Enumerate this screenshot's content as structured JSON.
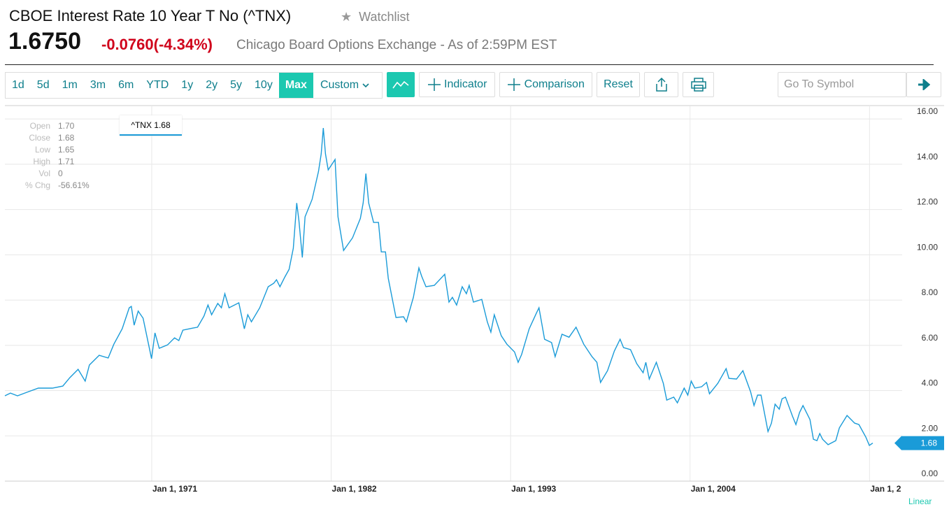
{
  "header": {
    "title": "CBOE Interest Rate 10 Year T No (^TNX)",
    "watchlist": "Watchlist",
    "price": "1.6750",
    "change": "-0.0760",
    "change_pct": "(-4.34%)",
    "source": "Chicago Board Options Exchange - As of 2:59PM EST"
  },
  "toolbar": {
    "ranges": [
      "1d",
      "5d",
      "1m",
      "3m",
      "6m",
      "YTD",
      "1y",
      "2y",
      "5y",
      "10y",
      "Max"
    ],
    "active_range": 10,
    "custom": "Custom",
    "indicator": "Indicator",
    "comparison": "Comparison",
    "reset": "Reset",
    "search_placeholder": "Go To Symbol"
  },
  "quote_panel": [
    {
      "label": "Open",
      "value": "1.70"
    },
    {
      "label": "Close",
      "value": "1.68"
    },
    {
      "label": "Low",
      "value": "1.65"
    },
    {
      "label": "High",
      "value": "1.71"
    },
    {
      "label": "Vol",
      "value": "0"
    },
    {
      "label": "% Chg",
      "value": "-56.61%"
    }
  ],
  "chart_data": {
    "type": "line",
    "legend_label": "^TNX 1.68",
    "last_label": "1.68",
    "scale_label": "Linear",
    "color": "#1a9bd8",
    "grid": true,
    "x": [
      1962.0,
      1962.34,
      1962.77,
      1963.33,
      1964.05,
      1964.91,
      1965.55,
      1965.98,
      1966.49,
      1966.92,
      1967.18,
      1967.78,
      1968.33,
      1968.68,
      1969.19,
      1969.62,
      1969.75,
      1969.92,
      1970.17,
      1970.47,
      1970.99,
      1971.2,
      1971.46,
      1971.97,
      1972.4,
      1972.66,
      1972.91,
      1973.51,
      1973.81,
      1974.2,
      1974.45,
      1974.67,
      1975.05,
      1975.27,
      1975.48,
      1975.74,
      1976.34,
      1976.68,
      1976.89,
      1977.11,
      1977.62,
      1978.14,
      1978.48,
      1978.65,
      1978.86,
      1979.16,
      1979.42,
      1979.68,
      1979.89,
      1980.02,
      1980.23,
      1980.4,
      1980.83,
      1981.22,
      1981.39,
      1981.52,
      1981.65,
      1981.82,
      1982.24,
      1982.42,
      1982.76,
      1983.31,
      1983.79,
      1983.96,
      1984.13,
      1984.3,
      1984.6,
      1984.9,
      1985.07,
      1985.33,
      1985.5,
      1985.97,
      1986.44,
      1986.61,
      1987.04,
      1987.38,
      1987.55,
      1987.81,
      1988.32,
      1988.96,
      1989.22,
      1989.43,
      1989.69,
      1990.03,
      1990.29,
      1990.46,
      1990.72,
      1991.23,
      1991.57,
      1991.79,
      1992.0,
      1992.43,
      1992.77,
      1993.24,
      1993.46,
      1993.67,
      1994.14,
      1994.57,
      1994.74,
      1995.08,
      1995.51,
      1995.73,
      1996.15,
      1996.58,
      1997.01,
      1997.48,
      1997.99,
      1998.29,
      1998.51,
      1998.94,
      1999.36,
      1999.71,
      1999.92,
      2000.35,
      2000.73,
      2001.12,
      2001.29,
      2001.5,
      2001.93,
      2002.36,
      2002.57,
      2003.0,
      2003.22,
      2003.64,
      2003.86,
      2004.07,
      2004.29,
      2004.71,
      2005.01,
      2005.19,
      2005.7,
      2006.21,
      2006.38,
      2006.85,
      2007.24,
      2007.71,
      2007.92,
      2008.14,
      2008.35,
      2008.78,
      2008.99,
      2009.21,
      2009.47,
      2009.64,
      2009.85,
      2010.28,
      2010.49,
      2010.71,
      2010.92,
      2011.35,
      2011.56,
      2011.78,
      2011.95,
      2012.12,
      2012.46,
      2012.93,
      2013.15,
      2013.62,
      2014.09,
      2014.35,
      2014.77,
      2014.99,
      2015.2
    ],
    "values": [
      3.77,
      3.89,
      3.77,
      3.92,
      4.11,
      4.11,
      4.2,
      4.57,
      4.94,
      4.42,
      5.13,
      5.56,
      5.44,
      6.05,
      6.73,
      7.66,
      7.72,
      6.89,
      7.51,
      7.2,
      5.41,
      6.55,
      5.87,
      6.02,
      6.33,
      6.21,
      6.67,
      6.76,
      6.8,
      7.29,
      7.78,
      7.35,
      7.85,
      7.66,
      8.28,
      7.66,
      7.88,
      6.73,
      7.35,
      7.04,
      7.66,
      8.59,
      8.74,
      8.9,
      8.59,
      9.02,
      9.36,
      10.29,
      12.29,
      11.52,
      9.88,
      11.68,
      12.45,
      13.68,
      14.46,
      15.6,
      14.46,
      13.75,
      14.21,
      11.68,
      10.19,
      10.75,
      11.61,
      12.29,
      13.59,
      12.29,
      11.43,
      11.43,
      10.13,
      10.13,
      8.96,
      7.23,
      7.26,
      7.04,
      8.12,
      9.42,
      9.05,
      8.59,
      8.65,
      9.14,
      7.91,
      8.12,
      7.78,
      8.59,
      8.28,
      8.65,
      7.91,
      8.03,
      7.04,
      6.58,
      7.35,
      6.42,
      6.05,
      5.71,
      5.25,
      5.59,
      6.73,
      7.41,
      7.66,
      6.27,
      6.12,
      5.5,
      6.49,
      6.36,
      6.8,
      6.05,
      5.5,
      5.25,
      4.36,
      4.88,
      5.75,
      6.27,
      5.9,
      5.81,
      5.19,
      4.79,
      5.25,
      4.51,
      5.25,
      4.32,
      3.58,
      3.71,
      3.46,
      4.11,
      3.8,
      4.42,
      4.11,
      4.17,
      4.36,
      3.86,
      4.32,
      4.97,
      4.54,
      4.51,
      4.88,
      3.95,
      3.34,
      3.8,
      3.8,
      2.19,
      2.56,
      3.4,
      3.18,
      3.64,
      3.71,
      2.87,
      2.5,
      3.03,
      3.34,
      2.72,
      1.85,
      1.79,
      2.1,
      1.85,
      1.61,
      1.79,
      2.35,
      2.9,
      2.56,
      2.5,
      1.95,
      1.58,
      1.68
    ],
    "xlim": [
      1962,
      2017
    ],
    "ylim": [
      0,
      16.5
    ],
    "xticks": [
      {
        "value": 1971,
        "label": "Jan 1, 1971"
      },
      {
        "value": 1982,
        "label": "Jan 1, 1982"
      },
      {
        "value": 1993,
        "label": "Jan 1, 1993"
      },
      {
        "value": 2004,
        "label": "Jan 1, 2004"
      },
      {
        "value": 2015,
        "label": "Jan 1, 2"
      }
    ],
    "yticks": [
      {
        "value": 0,
        "label": "0.00"
      },
      {
        "value": 2,
        "label": "2.00"
      },
      {
        "value": 4,
        "label": "4.00"
      },
      {
        "value": 6,
        "label": "6.00"
      },
      {
        "value": 8,
        "label": "8.00"
      },
      {
        "value": 10,
        "label": "10.00"
      },
      {
        "value": 12,
        "label": "12.00"
      },
      {
        "value": 14,
        "label": "14.00"
      },
      {
        "value": 16,
        "label": "16.00"
      }
    ]
  }
}
